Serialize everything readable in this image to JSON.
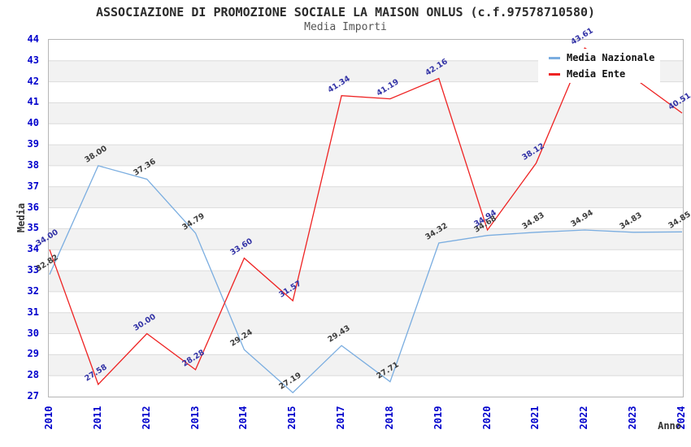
{
  "chart_data": {
    "type": "line",
    "title": "ASSOCIAZIONE DI PROMOZIONE SOCIALE LA MAISON ONLUS (c.f.97578710580)",
    "subtitle": "Media Importi",
    "xlabel": "Anno",
    "ylabel": "Media",
    "ylim": [
      27,
      44
    ],
    "y_ticks": [
      27,
      28,
      29,
      30,
      31,
      32,
      33,
      34,
      35,
      36,
      37,
      38,
      39,
      40,
      41,
      42,
      43,
      44
    ],
    "categories": [
      "2010",
      "2011",
      "2012",
      "2013",
      "2014",
      "2015",
      "2017",
      "2018",
      "2019",
      "2020",
      "2021",
      "2022",
      "2023",
      "2024"
    ],
    "series": [
      {
        "name": "Media Nazionale",
        "color": "#7aade0",
        "label_color": "#3c3c3c",
        "values": [
          32.82,
          38.0,
          37.36,
          34.79,
          29.24,
          27.19,
          29.43,
          27.71,
          34.32,
          34.68,
          34.83,
          34.94,
          34.83,
          34.85
        ]
      },
      {
        "name": "Media Ente",
        "color": "#ee2222",
        "label_color": "#3333a6",
        "values": [
          34.0,
          27.58,
          30.0,
          28.28,
          33.6,
          31.57,
          41.34,
          41.19,
          42.16,
          34.94,
          38.12,
          43.61,
          42.2,
          40.51
        ],
        "hidden_label_indexes": [
          12
        ],
        "note": "2023 value label is hidden behind the legend box; value estimated from line position"
      }
    ],
    "legend": {
      "position": "top-right",
      "entries": [
        "Media Nazionale",
        "Media Ente"
      ]
    },
    "grid": true,
    "band_color": "#f2f2f2",
    "grid_color": "#dcdcdc",
    "tick_label_color": "#0000cc"
  }
}
